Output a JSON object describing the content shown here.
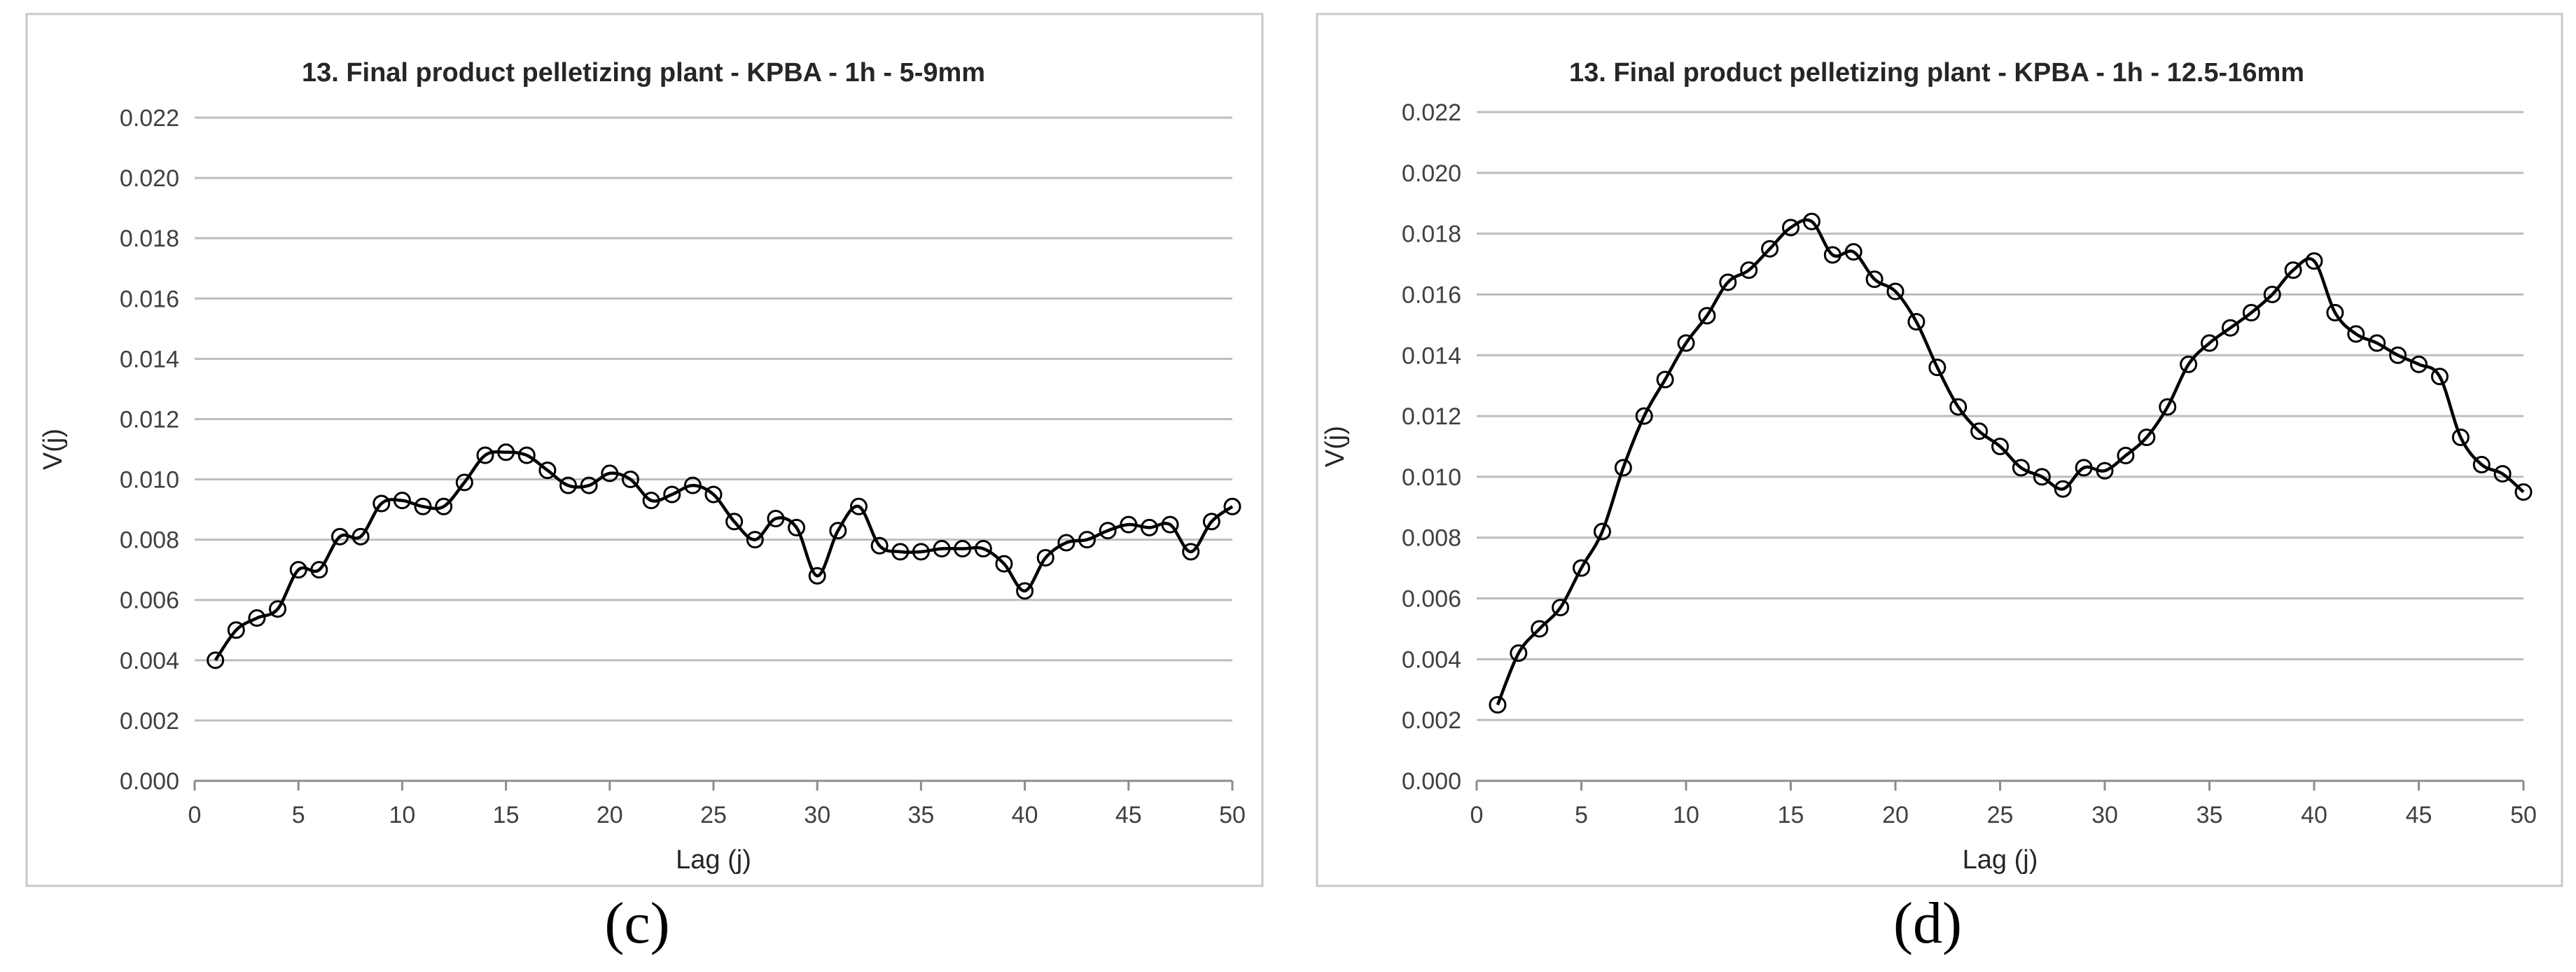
{
  "panels": [
    {
      "caption": "(c)",
      "chart_data": {
        "type": "line",
        "title": "13. Final product pelletizing plant - KPBA - 1h - 5-9mm",
        "xlabel": "Lag (j)",
        "ylabel": "V(j)",
        "xlim": [
          0,
          50
        ],
        "ylim": [
          0,
          0.022
        ],
        "x_ticks": [
          "0",
          "5",
          "10",
          "15",
          "20",
          "25",
          "30",
          "35",
          "40",
          "45",
          "50"
        ],
        "y_ticks": [
          "0.000",
          "0.002",
          "0.004",
          "0.006",
          "0.008",
          "0.010",
          "0.012",
          "0.014",
          "0.016",
          "0.018",
          "0.020",
          "0.022"
        ],
        "grid": true,
        "marker": "open-circle",
        "x": [
          1,
          2,
          3,
          4,
          5,
          6,
          7,
          8,
          9,
          10,
          11,
          12,
          13,
          14,
          15,
          16,
          17,
          18,
          19,
          20,
          21,
          22,
          23,
          24,
          25,
          26,
          27,
          28,
          29,
          30,
          31,
          32,
          33,
          34,
          35,
          36,
          37,
          38,
          39,
          40,
          41,
          42,
          43,
          44,
          45,
          46,
          47,
          48,
          49,
          50
        ],
        "values": [
          0.004,
          0.005,
          0.0054,
          0.0057,
          0.007,
          0.007,
          0.0081,
          0.0081,
          0.0092,
          0.0093,
          0.0091,
          0.0091,
          0.0099,
          0.0108,
          0.0109,
          0.0108,
          0.0103,
          0.0098,
          0.0098,
          0.0102,
          0.01,
          0.0093,
          0.0095,
          0.0098,
          0.0095,
          0.0086,
          0.008,
          0.0087,
          0.0084,
          0.0068,
          0.0083,
          0.0091,
          0.0078,
          0.0076,
          0.0076,
          0.0077,
          0.0077,
          0.0077,
          0.0072,
          0.0063,
          0.0074,
          0.0079,
          0.008,
          0.0083,
          0.0085,
          0.0084,
          0.0085,
          0.0076,
          0.0086,
          0.0091
        ]
      }
    },
    {
      "caption": "(d)",
      "chart_data": {
        "type": "line",
        "title": "13. Final product pelletizing plant - KPBA - 1h - 12.5-16mm",
        "xlabel": "Lag (j)",
        "ylabel": "V(j)",
        "xlim": [
          0,
          50
        ],
        "ylim": [
          0,
          0.022
        ],
        "x_ticks": [
          "0",
          "5",
          "10",
          "15",
          "20",
          "25",
          "30",
          "35",
          "40",
          "45",
          "50"
        ],
        "y_ticks": [
          "0.000",
          "0.002",
          "0.004",
          "0.006",
          "0.008",
          "0.010",
          "0.012",
          "0.014",
          "0.016",
          "0.018",
          "0.020",
          "0.022"
        ],
        "grid": true,
        "marker": "open-circle",
        "x": [
          1,
          2,
          3,
          4,
          5,
          6,
          7,
          8,
          9,
          10,
          11,
          12,
          13,
          14,
          15,
          16,
          17,
          18,
          19,
          20,
          21,
          22,
          23,
          24,
          25,
          26,
          27,
          28,
          29,
          30,
          31,
          32,
          33,
          34,
          35,
          36,
          37,
          38,
          39,
          40,
          41,
          42,
          43,
          44,
          45,
          46,
          47,
          48,
          49,
          50
        ],
        "values": [
          0.0025,
          0.0042,
          0.005,
          0.0057,
          0.007,
          0.0082,
          0.0103,
          0.012,
          0.0132,
          0.0144,
          0.0153,
          0.0164,
          0.0168,
          0.0175,
          0.0182,
          0.0184,
          0.0173,
          0.0174,
          0.0165,
          0.0161,
          0.0151,
          0.0136,
          0.0123,
          0.0115,
          0.011,
          0.0103,
          0.01,
          0.0096,
          0.0103,
          0.0102,
          0.0107,
          0.0113,
          0.0123,
          0.0137,
          0.0144,
          0.0149,
          0.0154,
          0.016,
          0.0168,
          0.0171,
          0.0154,
          0.0147,
          0.0144,
          0.014,
          0.0137,
          0.0133,
          0.0113,
          0.0104,
          0.0101,
          0.0095
        ]
      }
    }
  ]
}
